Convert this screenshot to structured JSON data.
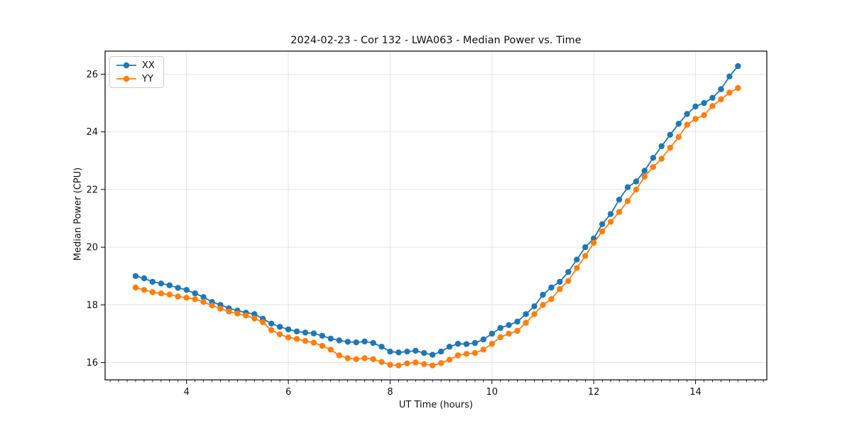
{
  "figure": {
    "background": "#ffffff"
  },
  "chart_data": {
    "type": "line",
    "title": "2024-02-23 - Cor 132 - LWA063 - Median Power vs. Time",
    "xlabel": "UT Time (hours)",
    "ylabel": "Median Power (CPU)",
    "xlim": [
      2.4,
      15.4
    ],
    "ylim": [
      15.4,
      26.8
    ],
    "x_major_ticks": [
      4,
      6,
      8,
      10,
      12,
      14
    ],
    "x_tick_labels": [
      "4",
      "6",
      "8",
      "10",
      "12",
      "14"
    ],
    "x_minor_step": 0.16667,
    "y_major_ticks": [
      16,
      18,
      20,
      22,
      24,
      26
    ],
    "y_tick_labels": [
      "16",
      "18",
      "20",
      "22",
      "24",
      "26"
    ],
    "grid": true,
    "grid_color": "#e3e3e3",
    "frame_color": "#000000",
    "legend_position": "upper-left",
    "x": [
      3.0,
      3.167,
      3.333,
      3.5,
      3.667,
      3.833,
      4.0,
      4.167,
      4.333,
      4.5,
      4.667,
      4.833,
      5.0,
      5.167,
      5.333,
      5.5,
      5.667,
      5.833,
      6.0,
      6.167,
      6.333,
      6.5,
      6.667,
      6.833,
      7.0,
      7.167,
      7.333,
      7.5,
      7.667,
      7.833,
      8.0,
      8.167,
      8.333,
      8.5,
      8.667,
      8.833,
      9.0,
      9.167,
      9.333,
      9.5,
      9.667,
      9.833,
      10.0,
      10.167,
      10.333,
      10.5,
      10.667,
      10.833,
      11.0,
      11.167,
      11.333,
      11.5,
      11.667,
      11.833,
      12.0,
      12.167,
      12.333,
      12.5,
      12.667,
      12.833,
      13.0,
      13.167,
      13.333,
      13.5,
      13.667,
      13.833,
      14.0,
      14.167,
      14.333,
      14.5,
      14.667,
      14.833
    ],
    "series": [
      {
        "name": "XX",
        "color": "#1f77b4",
        "marker": "circle",
        "values": [
          19.0,
          18.92,
          18.8,
          18.74,
          18.68,
          18.59,
          18.52,
          18.4,
          18.27,
          18.1,
          18.0,
          17.88,
          17.8,
          17.73,
          17.68,
          17.52,
          17.35,
          17.24,
          17.15,
          17.08,
          17.04,
          17.01,
          16.93,
          16.83,
          16.77,
          16.72,
          16.7,
          16.73,
          16.68,
          16.55,
          16.38,
          16.35,
          16.38,
          16.41,
          16.33,
          16.27,
          16.38,
          16.55,
          16.65,
          16.64,
          16.68,
          16.8,
          17.0,
          17.2,
          17.3,
          17.42,
          17.68,
          17.95,
          18.35,
          18.6,
          18.8,
          19.14,
          19.57,
          20.0,
          20.3,
          20.8,
          21.15,
          21.65,
          22.08,
          22.28,
          22.65,
          23.1,
          23.5,
          23.9,
          24.28,
          24.62,
          24.88,
          25.0,
          25.18,
          25.48,
          25.92,
          26.28
        ]
      },
      {
        "name": "YY",
        "color": "#ff7f0e",
        "marker": "circle",
        "values": [
          18.6,
          18.52,
          18.44,
          18.4,
          18.36,
          18.29,
          18.25,
          18.2,
          18.1,
          17.98,
          17.87,
          17.77,
          17.7,
          17.63,
          17.53,
          17.4,
          17.12,
          16.98,
          16.87,
          16.82,
          16.75,
          16.69,
          16.58,
          16.45,
          16.25,
          16.15,
          16.12,
          16.15,
          16.12,
          16.02,
          15.92,
          15.9,
          15.97,
          16.0,
          15.95,
          15.9,
          15.98,
          16.1,
          16.25,
          16.3,
          16.33,
          16.45,
          16.65,
          16.88,
          17.0,
          17.1,
          17.38,
          17.68,
          18.0,
          18.2,
          18.55,
          18.83,
          19.28,
          19.7,
          20.15,
          20.55,
          20.88,
          21.22,
          21.6,
          22.0,
          22.45,
          22.78,
          23.07,
          23.45,
          23.82,
          24.25,
          24.45,
          24.58,
          24.9,
          25.13,
          25.36,
          25.52
        ]
      }
    ]
  }
}
